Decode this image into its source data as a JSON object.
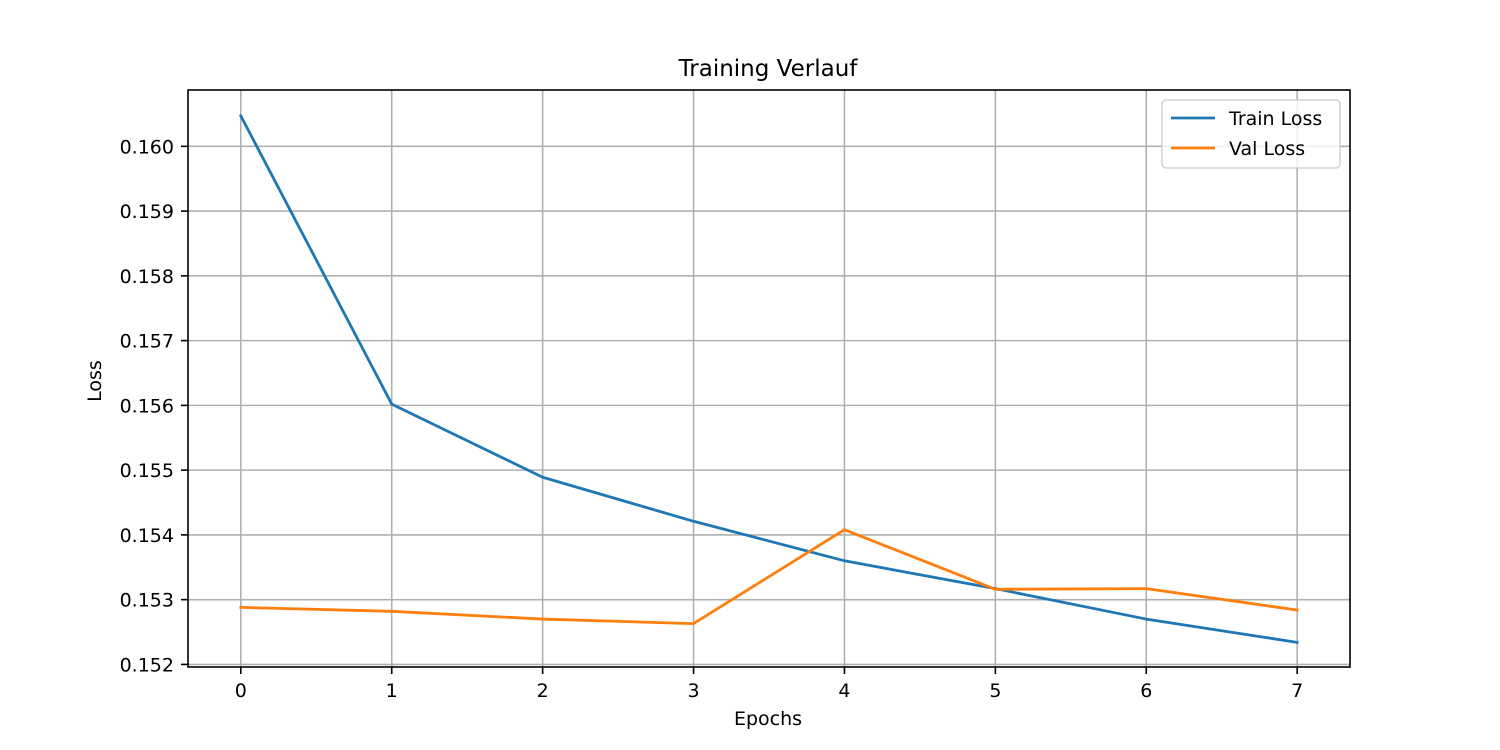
{
  "chart_data": {
    "type": "line",
    "title": "Training Verlauf",
    "xlabel": "Epochs",
    "ylabel": "Loss",
    "x": [
      0,
      1,
      2,
      3,
      4,
      5,
      6,
      7
    ],
    "xticks": [
      "0",
      "1",
      "2",
      "3",
      "4",
      "5",
      "6",
      "7"
    ],
    "yticks": [
      "0.152",
      "0.153",
      "0.154",
      "0.155",
      "0.156",
      "0.157",
      "0.158",
      "0.159",
      "0.160"
    ],
    "xlim": [
      -0.35,
      7.35
    ],
    "ylim": [
      0.15196,
      0.16087
    ],
    "grid": true,
    "legend_position": "top-right",
    "series": [
      {
        "name": "Train Loss",
        "color": "#1f77b4",
        "values": [
          0.16047,
          0.15602,
          0.15489,
          0.15421,
          0.1536,
          0.15317,
          0.1527,
          0.15234
        ]
      },
      {
        "name": "Val Loss",
        "color": "#ff7f0e",
        "values": [
          0.15288,
          0.15282,
          0.1527,
          0.15263,
          0.15408,
          0.15316,
          0.15317,
          0.15284
        ]
      }
    ]
  }
}
